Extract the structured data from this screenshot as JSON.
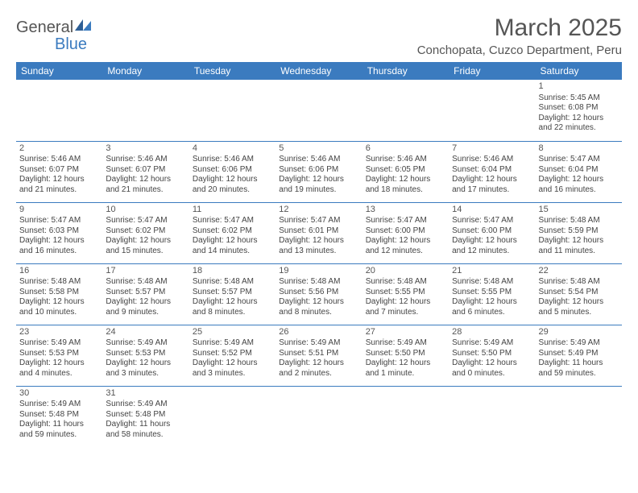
{
  "colors": {
    "header_bg": "#3b7bbf",
    "header_text": "#ffffff",
    "text": "#444444",
    "title": "#555555",
    "border": "#3b7bbf",
    "page_bg": "#ffffff"
  },
  "logo": {
    "part1": "General",
    "part2": "Blue"
  },
  "title": "March 2025",
  "location": "Conchopata, Cuzco Department, Peru",
  "weekdays": [
    "Sunday",
    "Monday",
    "Tuesday",
    "Wednesday",
    "Thursday",
    "Friday",
    "Saturday"
  ],
  "weeks": [
    [
      null,
      null,
      null,
      null,
      null,
      null,
      {
        "n": "1",
        "sr": "Sunrise: 5:45 AM",
        "ss": "Sunset: 6:08 PM",
        "d1": "Daylight: 12 hours",
        "d2": "and 22 minutes."
      }
    ],
    [
      {
        "n": "2",
        "sr": "Sunrise: 5:46 AM",
        "ss": "Sunset: 6:07 PM",
        "d1": "Daylight: 12 hours",
        "d2": "and 21 minutes."
      },
      {
        "n": "3",
        "sr": "Sunrise: 5:46 AM",
        "ss": "Sunset: 6:07 PM",
        "d1": "Daylight: 12 hours",
        "d2": "and 21 minutes."
      },
      {
        "n": "4",
        "sr": "Sunrise: 5:46 AM",
        "ss": "Sunset: 6:06 PM",
        "d1": "Daylight: 12 hours",
        "d2": "and 20 minutes."
      },
      {
        "n": "5",
        "sr": "Sunrise: 5:46 AM",
        "ss": "Sunset: 6:06 PM",
        "d1": "Daylight: 12 hours",
        "d2": "and 19 minutes."
      },
      {
        "n": "6",
        "sr": "Sunrise: 5:46 AM",
        "ss": "Sunset: 6:05 PM",
        "d1": "Daylight: 12 hours",
        "d2": "and 18 minutes."
      },
      {
        "n": "7",
        "sr": "Sunrise: 5:46 AM",
        "ss": "Sunset: 6:04 PM",
        "d1": "Daylight: 12 hours",
        "d2": "and 17 minutes."
      },
      {
        "n": "8",
        "sr": "Sunrise: 5:47 AM",
        "ss": "Sunset: 6:04 PM",
        "d1": "Daylight: 12 hours",
        "d2": "and 16 minutes."
      }
    ],
    [
      {
        "n": "9",
        "sr": "Sunrise: 5:47 AM",
        "ss": "Sunset: 6:03 PM",
        "d1": "Daylight: 12 hours",
        "d2": "and 16 minutes."
      },
      {
        "n": "10",
        "sr": "Sunrise: 5:47 AM",
        "ss": "Sunset: 6:02 PM",
        "d1": "Daylight: 12 hours",
        "d2": "and 15 minutes."
      },
      {
        "n": "11",
        "sr": "Sunrise: 5:47 AM",
        "ss": "Sunset: 6:02 PM",
        "d1": "Daylight: 12 hours",
        "d2": "and 14 minutes."
      },
      {
        "n": "12",
        "sr": "Sunrise: 5:47 AM",
        "ss": "Sunset: 6:01 PM",
        "d1": "Daylight: 12 hours",
        "d2": "and 13 minutes."
      },
      {
        "n": "13",
        "sr": "Sunrise: 5:47 AM",
        "ss": "Sunset: 6:00 PM",
        "d1": "Daylight: 12 hours",
        "d2": "and 12 minutes."
      },
      {
        "n": "14",
        "sr": "Sunrise: 5:47 AM",
        "ss": "Sunset: 6:00 PM",
        "d1": "Daylight: 12 hours",
        "d2": "and 12 minutes."
      },
      {
        "n": "15",
        "sr": "Sunrise: 5:48 AM",
        "ss": "Sunset: 5:59 PM",
        "d1": "Daylight: 12 hours",
        "d2": "and 11 minutes."
      }
    ],
    [
      {
        "n": "16",
        "sr": "Sunrise: 5:48 AM",
        "ss": "Sunset: 5:58 PM",
        "d1": "Daylight: 12 hours",
        "d2": "and 10 minutes."
      },
      {
        "n": "17",
        "sr": "Sunrise: 5:48 AM",
        "ss": "Sunset: 5:57 PM",
        "d1": "Daylight: 12 hours",
        "d2": "and 9 minutes."
      },
      {
        "n": "18",
        "sr": "Sunrise: 5:48 AM",
        "ss": "Sunset: 5:57 PM",
        "d1": "Daylight: 12 hours",
        "d2": "and 8 minutes."
      },
      {
        "n": "19",
        "sr": "Sunrise: 5:48 AM",
        "ss": "Sunset: 5:56 PM",
        "d1": "Daylight: 12 hours",
        "d2": "and 8 minutes."
      },
      {
        "n": "20",
        "sr": "Sunrise: 5:48 AM",
        "ss": "Sunset: 5:55 PM",
        "d1": "Daylight: 12 hours",
        "d2": "and 7 minutes."
      },
      {
        "n": "21",
        "sr": "Sunrise: 5:48 AM",
        "ss": "Sunset: 5:55 PM",
        "d1": "Daylight: 12 hours",
        "d2": "and 6 minutes."
      },
      {
        "n": "22",
        "sr": "Sunrise: 5:48 AM",
        "ss": "Sunset: 5:54 PM",
        "d1": "Daylight: 12 hours",
        "d2": "and 5 minutes."
      }
    ],
    [
      {
        "n": "23",
        "sr": "Sunrise: 5:49 AM",
        "ss": "Sunset: 5:53 PM",
        "d1": "Daylight: 12 hours",
        "d2": "and 4 minutes."
      },
      {
        "n": "24",
        "sr": "Sunrise: 5:49 AM",
        "ss": "Sunset: 5:53 PM",
        "d1": "Daylight: 12 hours",
        "d2": "and 3 minutes."
      },
      {
        "n": "25",
        "sr": "Sunrise: 5:49 AM",
        "ss": "Sunset: 5:52 PM",
        "d1": "Daylight: 12 hours",
        "d2": "and 3 minutes."
      },
      {
        "n": "26",
        "sr": "Sunrise: 5:49 AM",
        "ss": "Sunset: 5:51 PM",
        "d1": "Daylight: 12 hours",
        "d2": "and 2 minutes."
      },
      {
        "n": "27",
        "sr": "Sunrise: 5:49 AM",
        "ss": "Sunset: 5:50 PM",
        "d1": "Daylight: 12 hours",
        "d2": "and 1 minute."
      },
      {
        "n": "28",
        "sr": "Sunrise: 5:49 AM",
        "ss": "Sunset: 5:50 PM",
        "d1": "Daylight: 12 hours",
        "d2": "and 0 minutes."
      },
      {
        "n": "29",
        "sr": "Sunrise: 5:49 AM",
        "ss": "Sunset: 5:49 PM",
        "d1": "Daylight: 11 hours",
        "d2": "and 59 minutes."
      }
    ],
    [
      {
        "n": "30",
        "sr": "Sunrise: 5:49 AM",
        "ss": "Sunset: 5:48 PM",
        "d1": "Daylight: 11 hours",
        "d2": "and 59 minutes."
      },
      {
        "n": "31",
        "sr": "Sunrise: 5:49 AM",
        "ss": "Sunset: 5:48 PM",
        "d1": "Daylight: 11 hours",
        "d2": "and 58 minutes."
      },
      null,
      null,
      null,
      null,
      null
    ]
  ]
}
